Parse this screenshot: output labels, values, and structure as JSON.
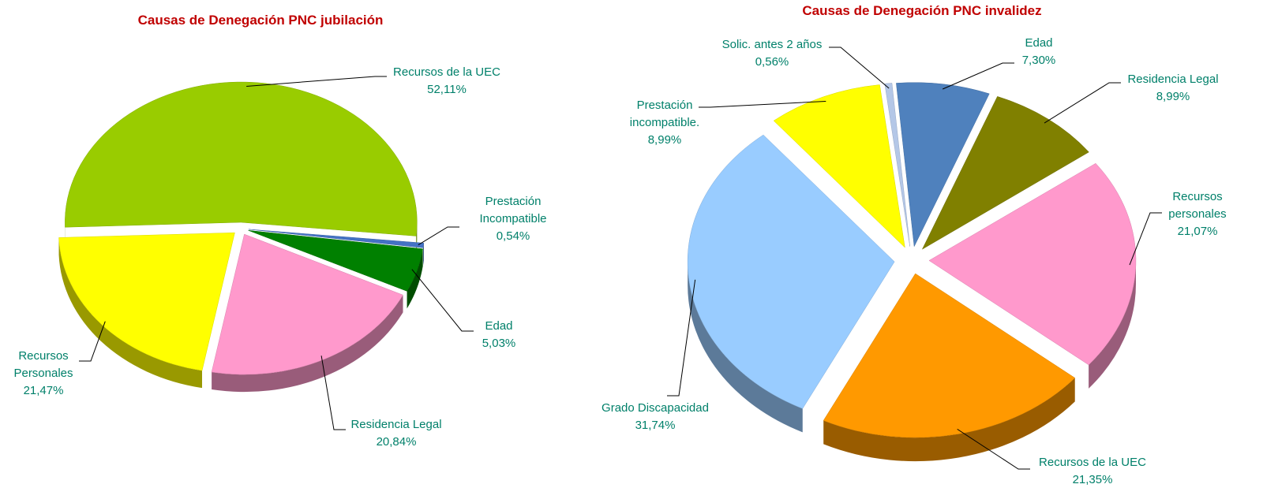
{
  "chart_data": [
    {
      "type": "pie",
      "title": "Causas de Denegación PNC jubilación",
      "categories": [
        "Recursos de la UEC",
        "Prestación Incompatible",
        "Edad",
        "Residencia Legal",
        "Recursos Personales"
      ],
      "values": [
        52.11,
        0.54,
        5.03,
        20.84,
        21.47
      ],
      "value_labels": [
        "52,11%",
        "0,54%",
        "5,03%",
        "20,84%",
        "21,47%"
      ],
      "colors": [
        "#99cc00",
        "#4472c4",
        "#008000",
        "#ff99cc",
        "#ffff00"
      ]
    },
    {
      "type": "pie",
      "title": "Causas de Denegación PNC invalidez",
      "categories": [
        "Solic. antes 2 años",
        "Edad",
        "Residencia Legal",
        "Recursos personales",
        "Recursos de la UEC",
        "Grado Discapacidad",
        "Prestación incompatible."
      ],
      "values": [
        0.56,
        7.3,
        8.99,
        21.07,
        21.35,
        31.74,
        8.99
      ],
      "value_labels": [
        "0,56%",
        "7,30%",
        "8,99%",
        "21,07%",
        "21,35%",
        "31,74%",
        "8,99%"
      ],
      "colors": [
        "#b4c7e7",
        "#4f81bd",
        "#808000",
        "#ff99cc",
        "#ff9900",
        "#99ccff",
        "#ffff00"
      ]
    }
  ]
}
